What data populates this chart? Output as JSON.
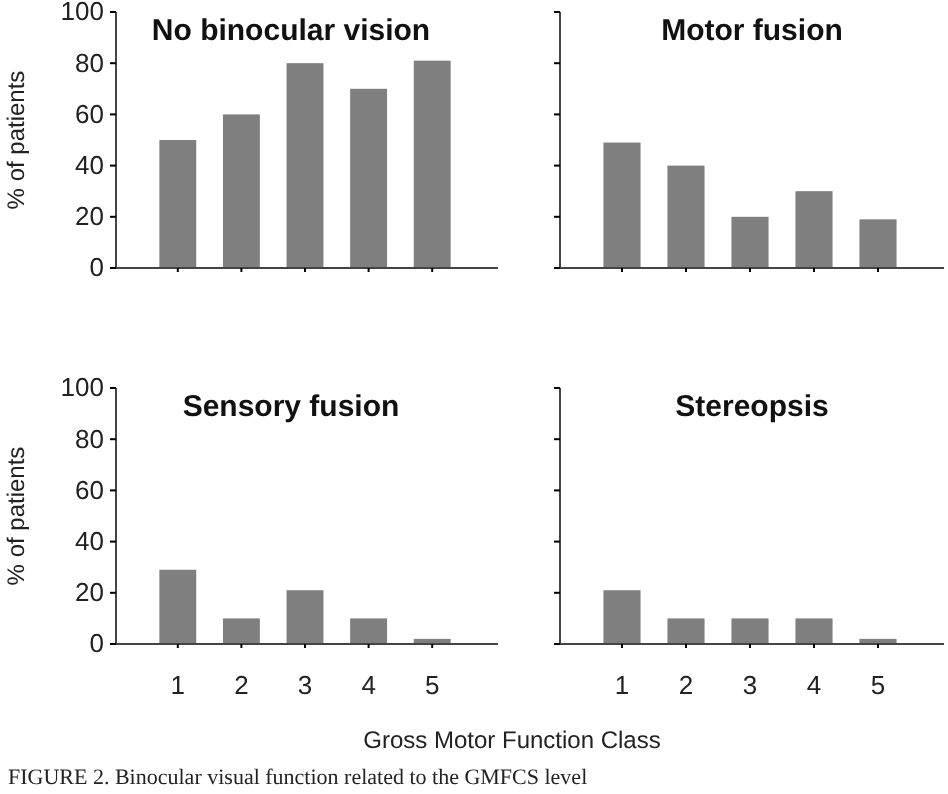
{
  "chart_data": [
    {
      "type": "bar",
      "title": "No binocular vision",
      "ylabel": "% of patients",
      "categories": [
        "1",
        "2",
        "3",
        "4",
        "5"
      ],
      "values": [
        50,
        60,
        80,
        70,
        81
      ],
      "color": "#7f7f7f",
      "ylim": [
        0,
        100
      ],
      "yticks": [
        0,
        20,
        40,
        60,
        80,
        100
      ],
      "tick_labels": "y"
    },
    {
      "type": "bar",
      "title": "Motor fusion",
      "categories": [
        "1",
        "2",
        "3",
        "4",
        "5"
      ],
      "values": [
        49,
        40,
        20,
        30,
        19
      ],
      "color": "#7f7f7f",
      "ylim": [
        0,
        100
      ],
      "yticks": [
        0,
        20,
        40,
        60,
        80,
        100
      ],
      "tick_labels": false
    },
    {
      "type": "bar",
      "title": "Sensory fusion",
      "ylabel": "% of patients",
      "xlabel": "Gross Motor Function Class",
      "categories": [
        "1",
        "2",
        "3",
        "4",
        "5"
      ],
      "values": [
        29,
        10,
        21,
        10,
        2
      ],
      "color": "#7f7f7f",
      "ylim": [
        0,
        100
      ],
      "yticks": [
        0,
        20,
        40,
        60,
        80,
        100
      ]
    },
    {
      "type": "bar",
      "title": "Stereopsis",
      "categories": [
        "1",
        "2",
        "3",
        "4",
        "5"
      ],
      "values": [
        21,
        10,
        10,
        10,
        2
      ],
      "color": "#7f7f7f",
      "ylim": [
        0,
        100
      ],
      "yticks": [
        0,
        20,
        40,
        60,
        80,
        100
      ],
      "tick_labels": "x",
      "annotations": [
        "FIGURE 2. Binocular visual function related to the GMFCS level"
      ]
    }
  ]
}
